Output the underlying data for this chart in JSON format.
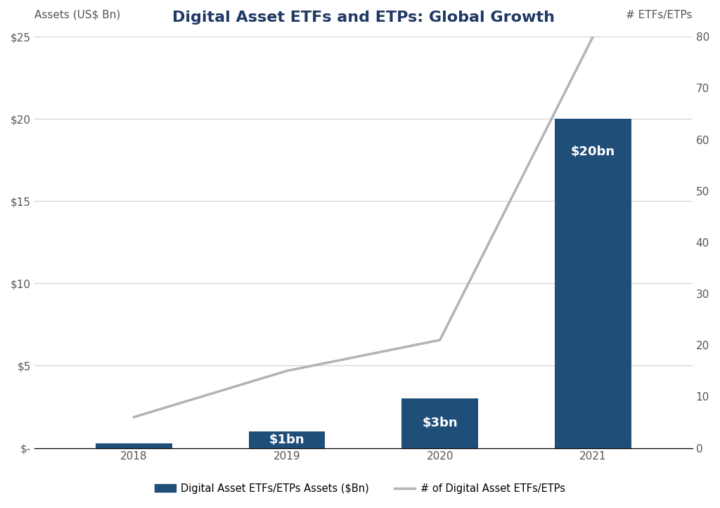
{
  "title": "Digital Asset ETFs and ETPs: Global Growth",
  "title_color": "#1f3864",
  "ylabel_left": "Assets (US$ Bn)",
  "ylabel_right": "# ETFs/ETPs",
  "background_color": "#ffffff",
  "years": [
    2018,
    2019,
    2020,
    2021
  ],
  "bar_values": [
    0.3,
    1.0,
    3.0,
    20.0
  ],
  "bar_color": "#1f4e79",
  "bar_labels": [
    "",
    "$1bn",
    "$3bn",
    "$20bn"
  ],
  "bar_label_color": "#ffffff",
  "line_values": [
    6,
    15,
    21,
    80
  ],
  "line_color": "#b3b3b3",
  "line_width": 2.5,
  "ylim_left": [
    0,
    25
  ],
  "ylim_right": [
    0,
    80
  ],
  "yticks_left": [
    0,
    5,
    10,
    15,
    20,
    25
  ],
  "ytick_labels_left": [
    "$-",
    "$5",
    "$10",
    "$15",
    "$20",
    "$25"
  ],
  "yticks_right": [
    0,
    10,
    20,
    30,
    40,
    50,
    60,
    70,
    80
  ],
  "grid_color": "#d0d0d0",
  "legend_bar_label": "Digital Asset ETFs/ETPs Assets ($Bn)",
  "legend_line_label": "# of Digital Asset ETFs/ETPs",
  "bar_width": 0.5,
  "bar_label_fontsize": 13,
  "axis_label_fontsize": 11,
  "tick_fontsize": 11,
  "title_fontsize": 16
}
